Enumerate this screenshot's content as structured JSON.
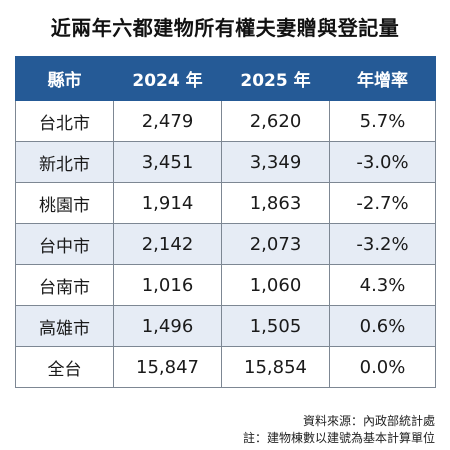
{
  "title": "近兩年六都建物所有權夫妻贈與登記量",
  "table": {
    "headers": [
      "縣市",
      "2024 年",
      "2025 年",
      "年增率"
    ],
    "rows": [
      [
        "台北市",
        "2,479",
        "2,620",
        "5.7%"
      ],
      [
        "新北市",
        "3,451",
        "3,349",
        "-3.0%"
      ],
      [
        "桃園市",
        "1,914",
        "1,863",
        "-2.7%"
      ],
      [
        "台中市",
        "2,142",
        "2,073",
        "-3.2%"
      ],
      [
        "台南市",
        "1,016",
        "1,060",
        "4.3%"
      ],
      [
        "高雄市",
        "1,496",
        "1,505",
        "0.6%"
      ],
      [
        "全台",
        "15,847",
        "15,854",
        "0.0%"
      ]
    ]
  },
  "source": "資料來源：內政部統計處",
  "footnote": "註：建物棟數以建號為基本計算單位",
  "colors": {
    "header_bg": "#255a96",
    "header_text": "#ffffff",
    "stripe_bg": "#e6ecf5",
    "border": "#7d8793"
  }
}
